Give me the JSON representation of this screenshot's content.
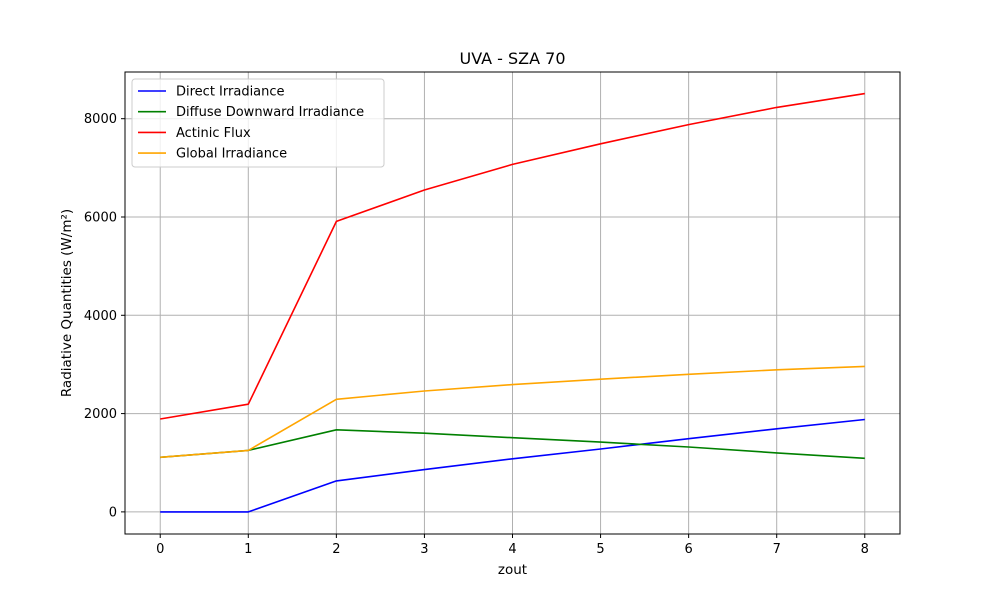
{
  "chart_data": {
    "type": "line",
    "title": "UVA - SZA 70",
    "xlabel": "zout",
    "ylabel": "Radiative Quantities (W/m²)",
    "x": [
      0,
      1,
      2,
      3,
      4,
      5,
      6,
      7,
      8
    ],
    "xlim": [
      -0.4,
      8.4
    ],
    "ylim": [
      -450,
      8950
    ],
    "xticks": [
      0,
      1,
      2,
      3,
      4,
      5,
      6,
      7,
      8
    ],
    "yticks": [
      0,
      2000,
      4000,
      6000,
      8000
    ],
    "grid": true,
    "legend_position": "top-left",
    "series": [
      {
        "name": "Direct Irradiance",
        "color": "#0000ff",
        "values": [
          0,
          0,
          630,
          860,
          1080,
          1280,
          1490,
          1690,
          1880
        ]
      },
      {
        "name": "Diffuse Downward Irradiance",
        "color": "#008000",
        "values": [
          1110,
          1250,
          1670,
          1600,
          1510,
          1420,
          1320,
          1200,
          1090
        ]
      },
      {
        "name": "Actinic Flux",
        "color": "#ff0000",
        "values": [
          1890,
          2190,
          5910,
          6550,
          7070,
          7490,
          7880,
          8230,
          8510
        ]
      },
      {
        "name": "Global Irradiance",
        "color": "#ffa500",
        "values": [
          1110,
          1250,
          2290,
          2460,
          2590,
          2700,
          2800,
          2890,
          2960
        ]
      }
    ]
  }
}
